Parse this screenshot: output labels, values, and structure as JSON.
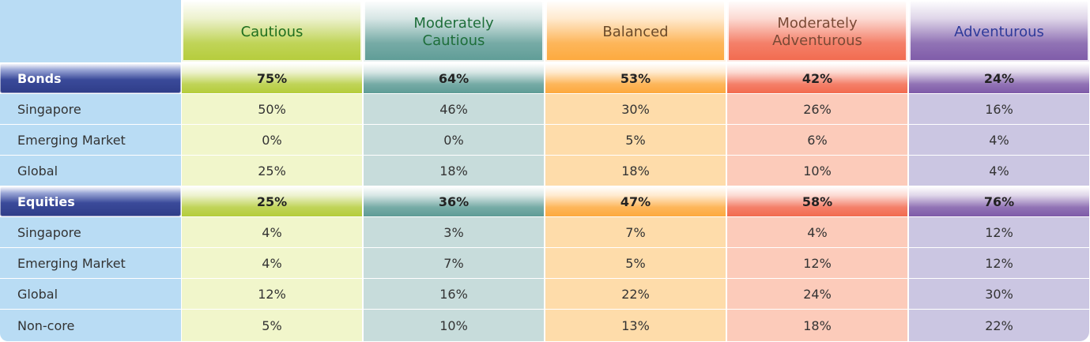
{
  "chart_data": {
    "type": "table",
    "columns": [
      {
        "label": "Cautious",
        "header_color": "#1e6e1e",
        "accent": "#b5cc3a",
        "tint": "#f1f6cb"
      },
      {
        "label": "Moderately\nCautious",
        "header_color": "#1e6e3a",
        "accent": "#5e9c96",
        "tint": "#c7dcdb"
      },
      {
        "label": "Balanced",
        "header_color": "#6a4a2a",
        "accent": "#fda93d",
        "tint": "#fedcaa"
      },
      {
        "label": "Moderately\nAdventurous",
        "header_color": "#7a4a36",
        "accent": "#f26a4e",
        "tint": "#fccbba"
      },
      {
        "label": "Adventurous",
        "header_color": "#2e3a9a",
        "accent": "#7e5aa8",
        "tint": "#cbc6e2"
      }
    ],
    "groups": [
      {
        "label": "Bonds",
        "totals": [
          "75%",
          "64%",
          "53%",
          "42%",
          "24%"
        ],
        "rows": [
          {
            "label": "Singapore",
            "values": [
              "50%",
              "46%",
              "30%",
              "26%",
              "16%"
            ]
          },
          {
            "label": "Emerging Market",
            "values": [
              "0%",
              "0%",
              "5%",
              "6%",
              "4%"
            ]
          },
          {
            "label": "Global",
            "values": [
              "25%",
              "18%",
              "18%",
              "10%",
              "4%"
            ]
          }
        ]
      },
      {
        "label": "Equities",
        "totals": [
          "25%",
          "36%",
          "47%",
          "58%",
          "76%"
        ],
        "rows": [
          {
            "label": "Singapore",
            "values": [
              "4%",
              "3%",
              "7%",
              "4%",
              "12%"
            ]
          },
          {
            "label": "Emerging Market",
            "values": [
              "4%",
              "7%",
              "5%",
              "12%",
              "12%"
            ]
          },
          {
            "label": "Global",
            "values": [
              "12%",
              "16%",
              "22%",
              "24%",
              "30%"
            ]
          },
          {
            "label": "Non-core",
            "values": [
              "5%",
              "10%",
              "13%",
              "18%",
              "22%"
            ]
          }
        ]
      }
    ]
  }
}
